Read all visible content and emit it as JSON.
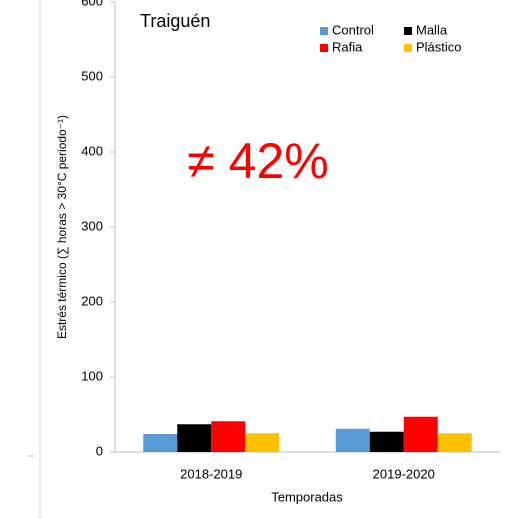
{
  "chart_data": {
    "type": "bar",
    "title": "Traiguén",
    "annotation": "≠ 42%",
    "xlabel": "Temporadas",
    "ylabel": "Estrés térmico (∑ horas  > 30°C periodo⁻¹)",
    "categories": [
      "2018-2019",
      "2019-2020"
    ],
    "series": [
      {
        "name": "Control",
        "color": "#5b9bd5",
        "values": [
          24,
          31
        ]
      },
      {
        "name": "Malla",
        "color": "#000000",
        "values": [
          37,
          27
        ]
      },
      {
        "name": "Rafia",
        "color": "#ff0000",
        "values": [
          41,
          47
        ]
      },
      {
        "name": "Plástico",
        "color": "#ffc000",
        "values": [
          25,
          25
        ]
      }
    ],
    "ylim": [
      0,
      600
    ],
    "yticks": [
      0,
      100,
      200,
      300,
      400,
      500,
      600
    ],
    "legend": "upper-right"
  }
}
